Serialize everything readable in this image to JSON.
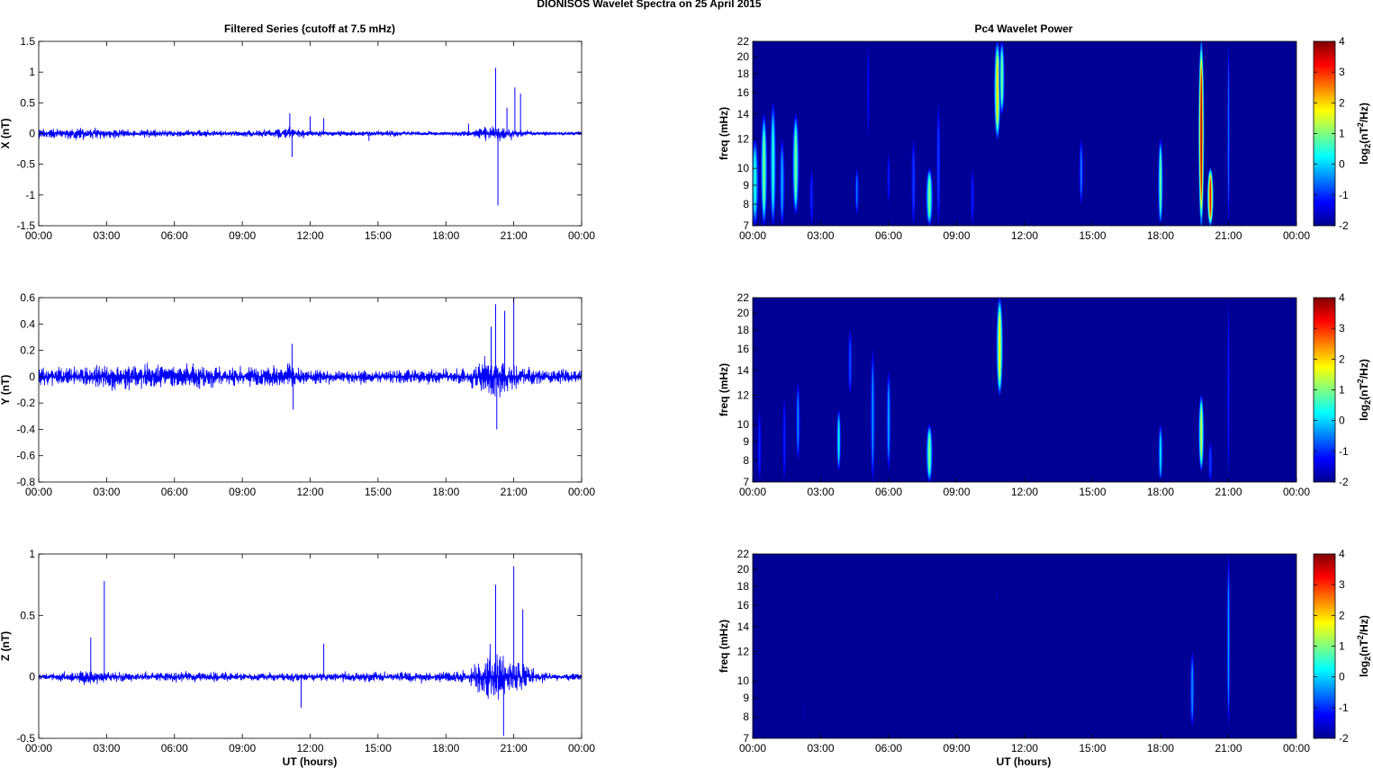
{
  "figure": {
    "suptitle": "DIONISOS Wavelet Spectra on 25 April     2015",
    "left_title": "Filtered Series (cutoff at 7.5 mHz)",
    "right_title": "Pc4 Wavelet Power",
    "xlabel": "UT (hours)"
  },
  "chart_data": [
    {
      "type": "line",
      "title": "Filtered Series (cutoff at 7.5 mHz)",
      "xlabel": "",
      "ylabel": "X (nT)",
      "xticks": [
        "00:00",
        "03:00",
        "06:00",
        "09:00",
        "12:00",
        "15:00",
        "18:00",
        "21:00",
        "00:00"
      ],
      "xlim": [
        0,
        24
      ],
      "ylim": [
        -1.5,
        1.5
      ],
      "yticks": [
        "-1.5",
        "-1",
        "-0.5",
        "0",
        "0.5",
        "1",
        "1.5"
      ],
      "color": "#0000ff",
      "noise_envelope_hours": [
        0,
        1,
        2,
        3,
        4,
        5,
        6,
        7,
        8,
        9,
        10,
        11,
        12,
        13,
        14,
        15,
        16,
        17,
        18,
        19,
        20,
        21,
        22,
        23,
        24
      ],
      "noise_envelope_nT": [
        0.12,
        0.13,
        0.13,
        0.11,
        0.09,
        0.09,
        0.08,
        0.08,
        0.07,
        0.07,
        0.09,
        0.15,
        0.07,
        0.06,
        0.06,
        0.06,
        0.07,
        0.05,
        0.05,
        0.06,
        0.18,
        0.12,
        0.05,
        0.04,
        0.04
      ],
      "spikes": [
        [
          11.1,
          0.33
        ],
        [
          11.2,
          -0.38
        ],
        [
          12.0,
          0.28
        ],
        [
          12.6,
          0.25
        ],
        [
          14.6,
          -0.12
        ],
        [
          19.0,
          0.16
        ],
        [
          20.2,
          1.07
        ],
        [
          20.3,
          -1.17
        ],
        [
          20.7,
          0.42
        ],
        [
          21.05,
          0.75
        ],
        [
          21.3,
          0.65
        ]
      ]
    },
    {
      "type": "line",
      "xlabel": "",
      "ylabel": "Y (nT)",
      "xticks": [
        "00:00",
        "03:00",
        "06:00",
        "09:00",
        "12:00",
        "15:00",
        "18:00",
        "21:00",
        "00:00"
      ],
      "xlim": [
        0,
        24
      ],
      "ylim": [
        -0.8,
        0.6
      ],
      "yticks": [
        "-0.8",
        "-0.6",
        "-0.4",
        "-0.2",
        "0",
        "0.2",
        "0.4",
        "0.6"
      ],
      "color": "#0000ff",
      "noise_envelope_hours": [
        0,
        1,
        2,
        3,
        4,
        5,
        6,
        7,
        8,
        9,
        10,
        11,
        12,
        13,
        14,
        15,
        16,
        17,
        18,
        19,
        20,
        21,
        22,
        23,
        24
      ],
      "noise_envelope_nT": [
        0.1,
        0.1,
        0.11,
        0.12,
        0.13,
        0.13,
        0.12,
        0.12,
        0.11,
        0.1,
        0.1,
        0.13,
        0.08,
        0.07,
        0.07,
        0.08,
        0.08,
        0.08,
        0.08,
        0.09,
        0.22,
        0.13,
        0.08,
        0.07,
        0.07
      ],
      "spikes": [
        [
          11.2,
          0.25
        ],
        [
          11.25,
          -0.25
        ],
        [
          20.0,
          0.38
        ],
        [
          20.2,
          0.55
        ],
        [
          20.25,
          -0.4
        ],
        [
          21.0,
          0.6
        ],
        [
          20.6,
          0.5
        ]
      ]
    },
    {
      "type": "line",
      "xlabel": "UT (hours)",
      "ylabel": "Z (nT)",
      "xticks": [
        "00:00",
        "03:00",
        "06:00",
        "09:00",
        "12:00",
        "15:00",
        "18:00",
        "21:00",
        "00:00"
      ],
      "xlim": [
        0,
        24
      ],
      "ylim": [
        -0.5,
        1
      ],
      "yticks": [
        "-0.5",
        "0",
        "0.5",
        "1"
      ],
      "color": "#0000ff",
      "noise_envelope_hours": [
        0,
        1,
        2,
        3,
        4,
        5,
        6,
        7,
        8,
        9,
        10,
        11,
        12,
        13,
        14,
        15,
        16,
        17,
        18,
        19,
        20,
        21,
        22,
        23,
        24
      ],
      "noise_envelope_nT": [
        0.04,
        0.05,
        0.08,
        0.06,
        0.05,
        0.05,
        0.05,
        0.06,
        0.06,
        0.05,
        0.05,
        0.05,
        0.05,
        0.05,
        0.05,
        0.06,
        0.06,
        0.06,
        0.06,
        0.07,
        0.35,
        0.2,
        0.06,
        0.04,
        0.04
      ],
      "spikes": [
        [
          2.3,
          0.32
        ],
        [
          2.9,
          0.78
        ],
        [
          11.6,
          -0.25
        ],
        [
          12.6,
          0.27
        ],
        [
          20.2,
          0.75
        ],
        [
          20.55,
          -0.48
        ],
        [
          21.0,
          0.9
        ],
        [
          21.4,
          0.55
        ]
      ]
    },
    {
      "type": "heatmap",
      "title": "Pc4 Wavelet Power",
      "xlabel": "",
      "ylabel": "freq (mHz)",
      "colorbar_label": "log2(nT2/Hz)",
      "clim": [
        -2,
        4
      ],
      "cticks": [
        "-2",
        "-1",
        "0",
        "1",
        "2",
        "3",
        "4"
      ],
      "colormap": "jet",
      "background_value": -2,
      "xticks": [
        "00:00",
        "03:00",
        "06:00",
        "09:00",
        "12:00",
        "15:00",
        "18:00",
        "21:00",
        "00:00"
      ],
      "xlim": [
        0,
        24
      ],
      "ylim_mHz": [
        7,
        22
      ],
      "yscale": "log",
      "yticks": [
        "7",
        "8",
        "9",
        "10",
        "12",
        "14",
        "16",
        "18",
        "20",
        "22"
      ],
      "streaks": [
        [
          0.1,
          7,
          12,
          0.4,
          0.35
        ],
        [
          0.5,
          7,
          14,
          1,
          0.3
        ],
        [
          0.9,
          7,
          15,
          0.5,
          0.28
        ],
        [
          1.3,
          7,
          12,
          -0.2,
          0.25
        ],
        [
          1.9,
          7.5,
          14,
          1,
          0.3
        ],
        [
          2.6,
          7,
          10,
          -1,
          0.2
        ],
        [
          4.6,
          7.5,
          10,
          -0.5,
          0.18
        ],
        [
          5.1,
          12,
          22,
          -1.2,
          0.15
        ],
        [
          6.0,
          8,
          11,
          -1,
          0.15
        ],
        [
          7.1,
          7,
          12,
          -0.8,
          0.2
        ],
        [
          7.8,
          7,
          10,
          1,
          0.32
        ],
        [
          8.2,
          7,
          15,
          -0.8,
          0.2
        ],
        [
          9.7,
          7,
          10,
          -1,
          0.18
        ],
        [
          10.8,
          12,
          22,
          2,
          0.3
        ],
        [
          11.0,
          14,
          22,
          1,
          0.25
        ],
        [
          14.5,
          8,
          12,
          -0.5,
          0.2
        ],
        [
          18.0,
          7,
          12,
          1,
          0.22
        ],
        [
          19.8,
          7,
          22,
          3.7,
          0.25
        ],
        [
          20.2,
          7,
          10,
          3.2,
          0.28
        ],
        [
          21.0,
          7,
          22,
          -0.5,
          0.12
        ]
      ]
    },
    {
      "type": "heatmap",
      "ylabel": "freq (mHz)",
      "xlabel": "",
      "colorbar_label": "log2(nT2/Hz)",
      "clim": [
        -2,
        4
      ],
      "cticks": [
        "-2",
        "-1",
        "0",
        "1",
        "2",
        "3",
        "4"
      ],
      "colormap": "jet",
      "background_value": -2,
      "xticks": [
        "00:00",
        "03:00",
        "06:00",
        "09:00",
        "12:00",
        "15:00",
        "18:00",
        "21:00",
        "00:00"
      ],
      "xlim": [
        0,
        24
      ],
      "ylim_mHz": [
        7,
        22
      ],
      "yscale": "log",
      "yticks": [
        "7",
        "8",
        "9",
        "10",
        "12",
        "14",
        "16",
        "18",
        "20",
        "22"
      ],
      "streaks": [
        [
          0.3,
          7,
          11,
          -1,
          0.2
        ],
        [
          1.4,
          7,
          12,
          -1,
          0.18
        ],
        [
          2.0,
          8,
          13,
          -0.4,
          0.2
        ],
        [
          3.8,
          7.5,
          11,
          0.3,
          0.2
        ],
        [
          4.3,
          12,
          18,
          -0.7,
          0.2
        ],
        [
          5.3,
          7,
          16,
          -0.3,
          0.2
        ],
        [
          6.0,
          7.5,
          14,
          -0.2,
          0.2
        ],
        [
          7.8,
          7,
          10,
          1,
          0.3
        ],
        [
          10.9,
          12,
          22,
          1.8,
          0.3
        ],
        [
          18.0,
          7,
          10,
          0.2,
          0.2
        ],
        [
          19.8,
          7.5,
          12,
          1.5,
          0.25
        ],
        [
          20.2,
          7,
          9,
          -0.8,
          0.2
        ],
        [
          21.0,
          7,
          22,
          -1,
          0.12
        ]
      ]
    },
    {
      "type": "heatmap",
      "xlabel": "UT (hours)",
      "ylabel": "freq (mHz)",
      "colorbar_label": "log2(nT2/Hz)",
      "clim": [
        -2,
        4
      ],
      "cticks": [
        "-2",
        "-1",
        "0",
        "1",
        "2",
        "3",
        "4"
      ],
      "colormap": "jet",
      "background_value": -2,
      "xticks": [
        "00:00",
        "03:00",
        "06:00",
        "09:00",
        "12:00",
        "15:00",
        "18:00",
        "21:00",
        "00:00"
      ],
      "xlim": [
        0,
        24
      ],
      "ylim_mHz": [
        7,
        22
      ],
      "yscale": "log",
      "yticks": [
        "7",
        "8",
        "9",
        "10",
        "12",
        "14",
        "16",
        "18",
        "20",
        "22"
      ],
      "streaks": [
        [
          2.3,
          7.5,
          9,
          -1.7,
          0.15
        ],
        [
          19.4,
          7.5,
          12,
          -0.3,
          0.2
        ],
        [
          21.0,
          7.5,
          22,
          -0.2,
          0.15
        ],
        [
          10.8,
          16,
          18,
          -1.6,
          0.12
        ]
      ]
    }
  ]
}
